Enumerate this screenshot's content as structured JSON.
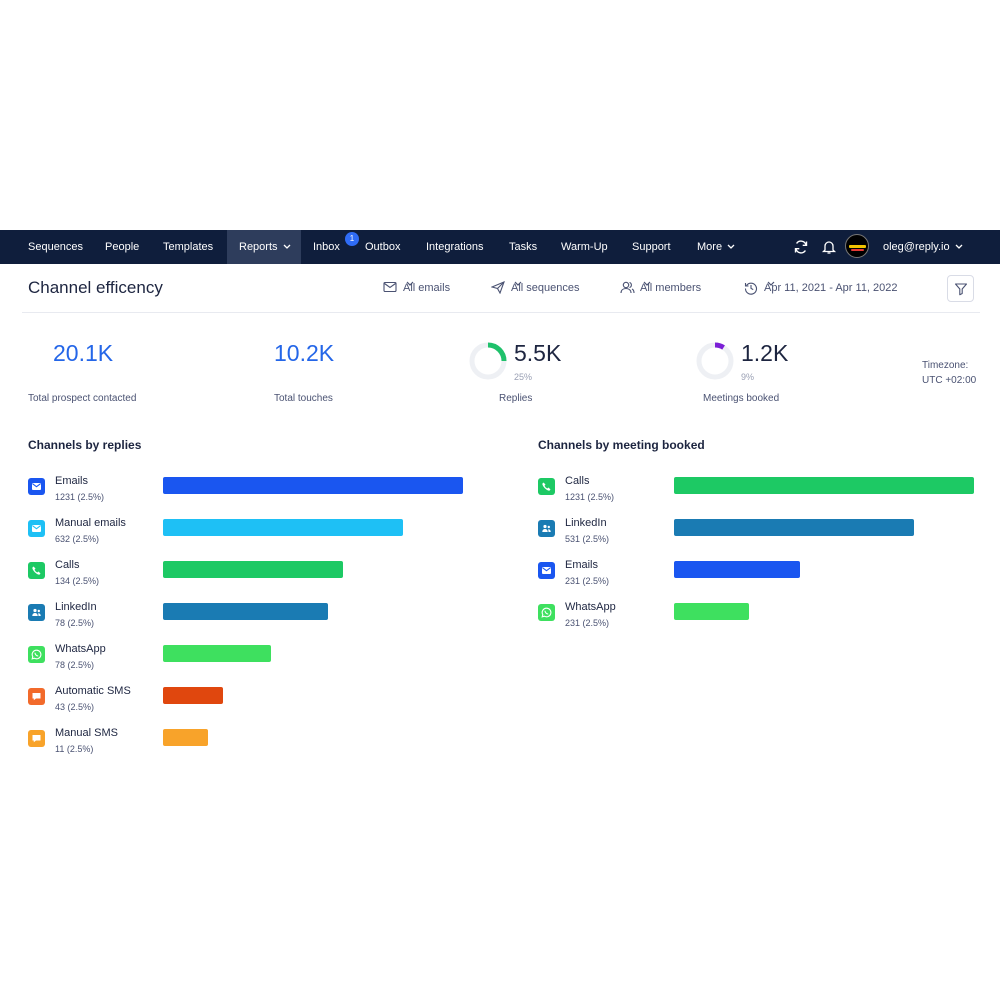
{
  "nav": {
    "items": [
      {
        "label": "Sequences"
      },
      {
        "label": "People"
      },
      {
        "label": "Templates"
      },
      {
        "label": "Reports"
      },
      {
        "label": "Inbox"
      },
      {
        "label": "Outbox"
      },
      {
        "label": "Integrations"
      },
      {
        "label": "Tasks"
      },
      {
        "label": "Warm-Up"
      },
      {
        "label": "Support"
      },
      {
        "label": "More"
      }
    ],
    "active": "Reports",
    "inbox_badge": "1",
    "user_email": "oleg@reply.io",
    "icons": [
      "refresh-icon",
      "bell-icon",
      "avatar"
    ]
  },
  "header": {
    "title": "Channel efficency",
    "filters": {
      "emails": "All emails",
      "sequences": "All sequences",
      "members": "All members",
      "date_range": "Apr 11, 2021 - Apr 11, 2022"
    }
  },
  "stats": {
    "prospects": {
      "value": "20.1K",
      "label": "Total prospect contacted"
    },
    "touches": {
      "value": "10.2K",
      "label": "Total touches"
    },
    "replies": {
      "value": "5.5K",
      "percent": "25%",
      "fraction": 0.25,
      "label": "Replies",
      "color": "#1fc16b"
    },
    "meetings": {
      "value": "1.2K",
      "percent": "9%",
      "fraction": 0.09,
      "label": "Meetings booked",
      "color": "#7b1fd6"
    },
    "timezone_label": "Timezone:",
    "timezone_value": "UTC +02:00"
  },
  "replies_section": {
    "title": "Channels by replies",
    "max": 1231,
    "items": [
      {
        "name": "Emails",
        "count": "1231 (2.5%)",
        "fraction": 1.0,
        "color": "#1a56f0",
        "icon_color": "#1a56f0",
        "icon": "envelope-icon"
      },
      {
        "name": "Manual emails",
        "count": "632 (2.5%)",
        "fraction": 0.8,
        "color": "#1ec0f5",
        "icon_color": "#1ec0f5",
        "icon": "envelope-icon"
      },
      {
        "name": "Calls",
        "count": "134 (2.5%)",
        "fraction": 0.6,
        "color": "#1dc964",
        "icon_color": "#1dc964",
        "icon": "phone-icon"
      },
      {
        "name": "LinkedIn",
        "count": "78 (2.5%)",
        "fraction": 0.55,
        "color": "#1a7bb3",
        "icon_color": "#1a7bb3",
        "icon": "linkedin-icon"
      },
      {
        "name": "WhatsApp",
        "count": "78 (2.5%)",
        "fraction": 0.36,
        "color": "#3ee05f",
        "icon_color": "#3ee05f",
        "icon": "whatsapp-icon"
      },
      {
        "name": "Automatic SMS",
        "count": "43 (2.5%)",
        "fraction": 0.2,
        "color": "#e0470e",
        "icon_color": "#f26a2b",
        "icon": "sms-icon"
      },
      {
        "name": "Manual SMS",
        "count": "11 (2.5%)",
        "fraction": 0.15,
        "color": "#f8a32a",
        "icon_color": "#f8a32a",
        "icon": "sms-icon"
      }
    ]
  },
  "meetings_section": {
    "title": "Channels by meeting booked",
    "items": [
      {
        "name": "Calls",
        "count": "1231 (2.5%)",
        "fraction": 1.0,
        "color": "#1dc964",
        "icon_color": "#1dc964",
        "icon": "phone-icon"
      },
      {
        "name": "LinkedIn",
        "count": "531 (2.5%)",
        "fraction": 0.8,
        "color": "#1a7bb3",
        "icon_color": "#1a7bb3",
        "icon": "linkedin-icon"
      },
      {
        "name": "Emails",
        "count": "231 (2.5%)",
        "fraction": 0.42,
        "color": "#1a56f0",
        "icon_color": "#1a56f0",
        "icon": "envelope-icon"
      },
      {
        "name": "WhatsApp",
        "count": "231 (2.5%)",
        "fraction": 0.25,
        "color": "#3ee05f",
        "icon_color": "#3ee05f",
        "icon": "whatsapp-icon"
      }
    ]
  }
}
